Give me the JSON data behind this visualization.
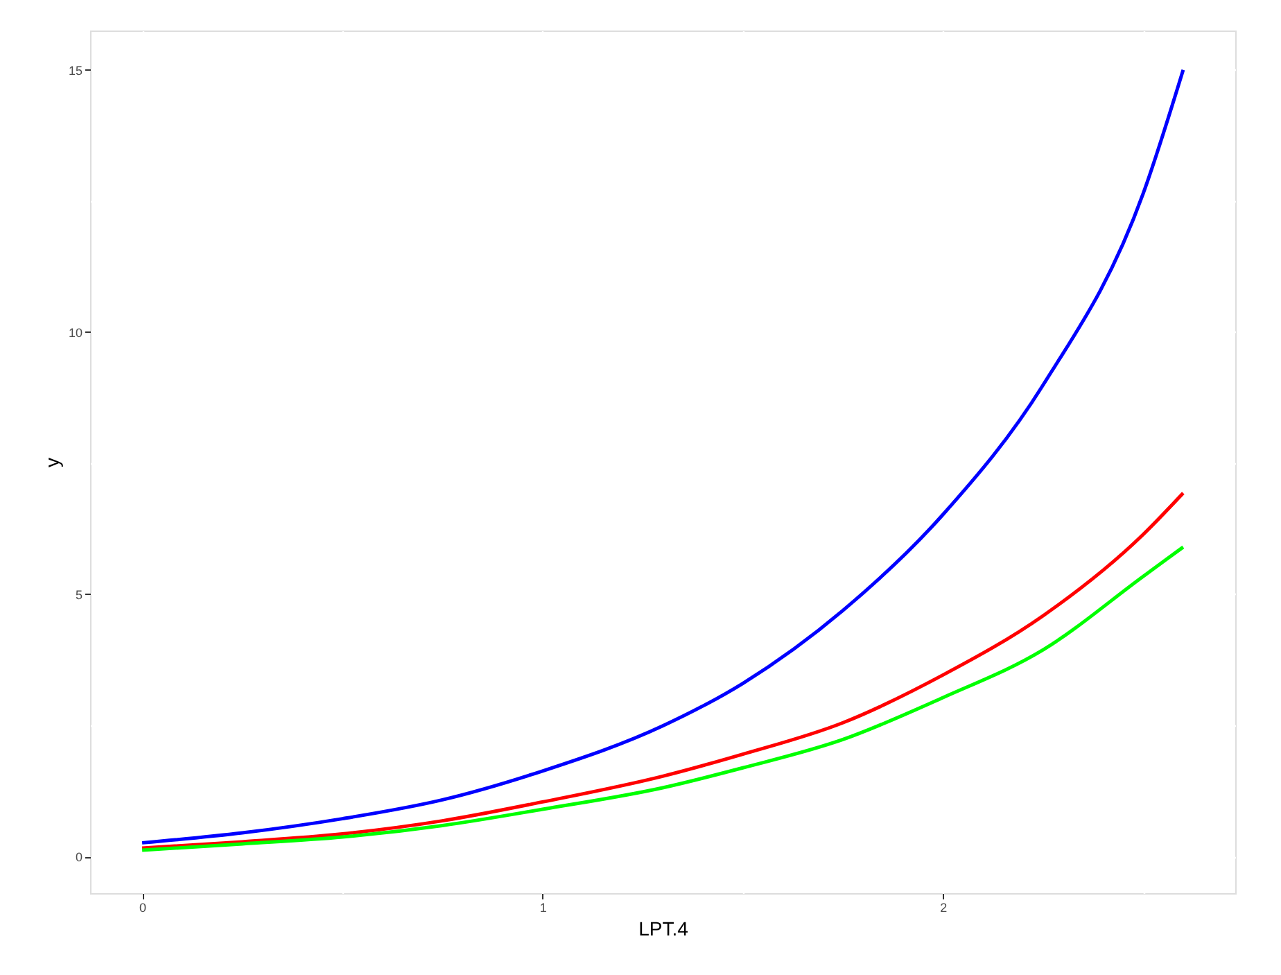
{
  "chart_data": {
    "type": "line",
    "xlabel": "LPT.4",
    "ylabel": "y",
    "xlim": [
      -0.13,
      2.73
    ],
    "ylim": [
      -0.7,
      15.75
    ],
    "xticks": [
      0,
      {
        "value": 0.5,
        "label": null
      },
      1,
      {
        "value": 1.5,
        "label": null
      },
      2,
      {
        "value": 2.5,
        "label": null
      }
    ],
    "yticks": [
      0,
      {
        "value": 2.5,
        "label": null
      },
      5,
      {
        "value": 7.5,
        "label": null
      },
      10,
      {
        "value": 12.5,
        "label": null
      },
      15
    ],
    "grid": true,
    "marker": "none",
    "line_style": "solid",
    "x": [
      0,
      0.25,
      0.5,
      0.75,
      1,
      1.3,
      1.5,
      1.75,
      2,
      2.25,
      2.5,
      2.6
    ],
    "series": [
      {
        "color": "#ff0000",
        "values": [
          0.16,
          0.28,
          0.43,
          0.68,
          1.04,
          1.53,
          1.95,
          2.55,
          3.46,
          4.59,
          6.14,
          6.93
        ]
      },
      {
        "color": "#00ff00",
        "values": [
          0.12,
          0.24,
          0.37,
          0.59,
          0.9,
          1.31,
          1.69,
          2.23,
          3.03,
          3.94,
          5.34,
          5.9
        ]
      },
      {
        "color": "#0000ff",
        "values": [
          0.26,
          0.45,
          0.72,
          1.08,
          1.63,
          2.49,
          3.3,
          4.69,
          6.52,
          8.99,
          12.64,
          15.0
        ]
      }
    ]
  }
}
